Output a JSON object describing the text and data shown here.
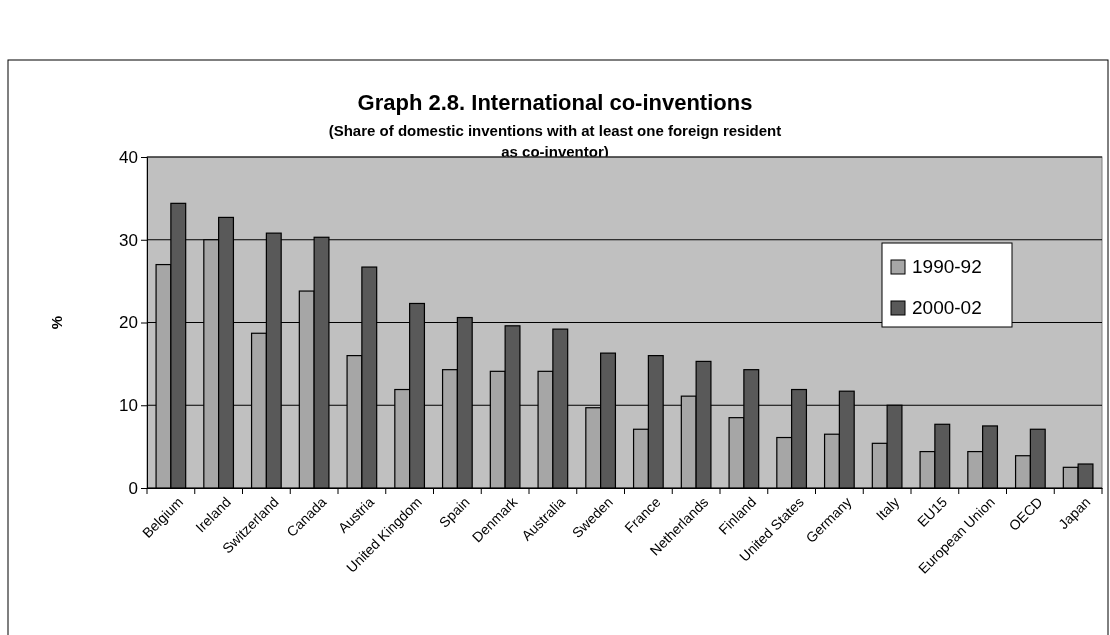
{
  "chart_data": {
    "type": "bar",
    "title": "Graph 2.8. International co-inventions",
    "subtitle": "(Share of domestic inventions with at least one foreign resident as co-inventor)",
    "ylabel": "%",
    "categories": [
      "Belgium",
      "Ireland",
      "Switzerland",
      "Canada",
      "Austria",
      "United Kingdom",
      "Spain",
      "Denmark",
      "Australia",
      "Sweden",
      "France",
      "Netherlands",
      "Finland",
      "United States",
      "Germany",
      "Italy",
      "EU15",
      "European Union",
      "OECD",
      "Japan"
    ],
    "series": [
      {
        "name": "1990-92",
        "color": "#a6a6a6",
        "values": [
          27,
          30,
          18.7,
          23.8,
          16,
          11.9,
          14.3,
          14.1,
          14.1,
          9.7,
          7.1,
          11.1,
          8.5,
          6.1,
          6.5,
          5.4,
          4.4,
          4.4,
          3.9,
          2.5
        ]
      },
      {
        "name": "2000-02",
        "color": "#595959",
        "values": [
          34.4,
          32.7,
          30.8,
          30.3,
          26.7,
          22.3,
          20.6,
          19.6,
          19.2,
          16.3,
          16,
          15.3,
          14.3,
          11.9,
          11.7,
          10,
          7.7,
          7.5,
          7.1,
          2.9
        ]
      }
    ],
    "ylim": [
      0,
      40
    ],
    "yticks": [
      0,
      10,
      20,
      30,
      40
    ],
    "grid": "y",
    "legend": "right"
  }
}
